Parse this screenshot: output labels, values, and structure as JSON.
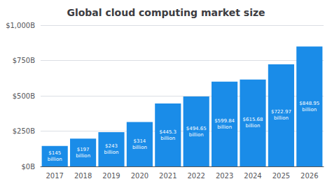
{
  "chart_data": {
    "type": "bar",
    "title": "Global cloud computing market size",
    "categories": [
      "2017",
      "2018",
      "2019",
      "2020",
      "2021",
      "2022",
      "2023",
      "2024",
      "2025",
      "2026"
    ],
    "values": [
      145,
      197,
      243,
      314,
      445.3,
      494.65,
      599.84,
      615.68,
      722.97,
      848.95
    ],
    "value_labels": [
      "$145\nbillion",
      "$197\nbillion",
      "$243\nbillion",
      "$314\nbillion",
      "$445.3\nbillion",
      "$494.65\nbillion",
      "$599.84\nbillion",
      "$615.68\nbillion",
      "$722.97\nbillion",
      "$848.95\nbillion"
    ],
    "data_labels": true,
    "color": "#1a8ce8",
    "ylim": [
      0,
      1000
    ],
    "yticks": [
      {
        "value": 0,
        "label": "$0B"
      },
      {
        "value": 250,
        "label": "$250B"
      },
      {
        "value": 500,
        "label": "$500B"
      },
      {
        "value": 750,
        "label": "$750B"
      },
      {
        "value": 1000,
        "label": "$1,000B"
      }
    ],
    "grid": true
  }
}
